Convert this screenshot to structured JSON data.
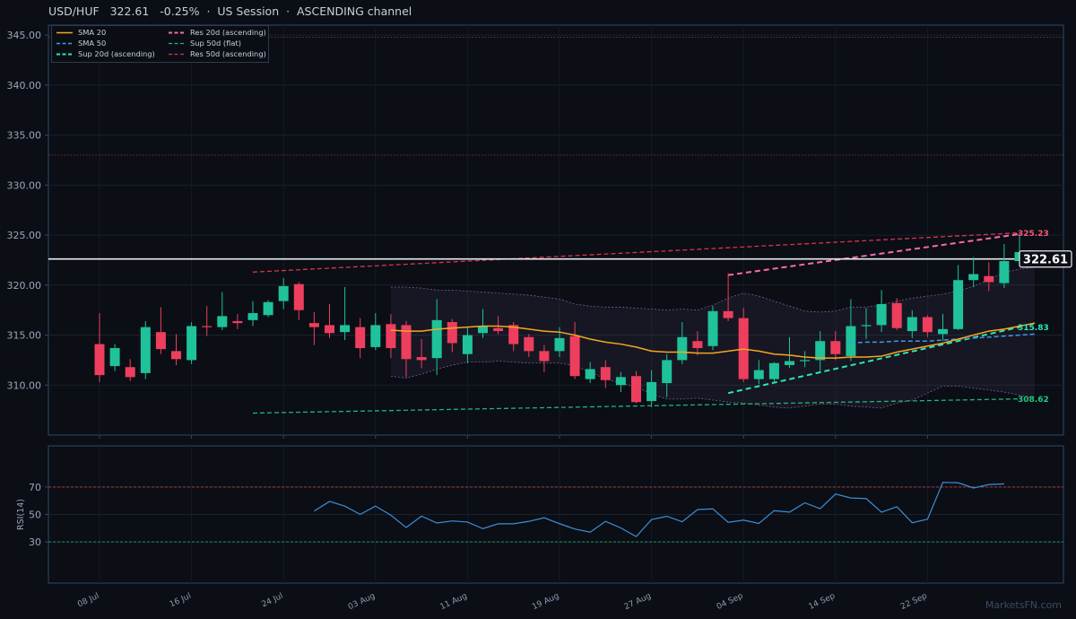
{
  "header": {
    "symbol": "USD/HUF",
    "price": "322.61",
    "change": "-0.25%",
    "session": "US Session",
    "pattern": "ASCENDING channel"
  },
  "legend": [
    {
      "label": "SMA 20",
      "color": "#f5a623",
      "dash": "solid",
      "width": 1.6
    },
    {
      "label": "SMA 50",
      "color": "#3b9be8",
      "dash": "dashed",
      "width": 1.6
    },
    {
      "label": "Sup 20d (ascending)",
      "color": "#2ee6b0",
      "dash": "dashed",
      "width": 2
    },
    {
      "label": "Res 20d (ascending)",
      "color": "#ff6aa8",
      "dash": "dashed",
      "width": 2
    },
    {
      "label": "Sup 50d (flat)",
      "color": "#22b37a",
      "dash": "dashed",
      "width": 1.3
    },
    {
      "label": "Res 50d (ascending)",
      "color": "#d9334f",
      "dash": "dashed",
      "width": 1.3
    }
  ],
  "watermark": "MarketsFN.com",
  "colors": {
    "up": "#1fc29b",
    "down": "#ee3e5e",
    "background": "#0b0e15",
    "grid": "#1a212d",
    "axis": "#2e4a66",
    "sma20": "#f5a623",
    "sma50": "#3b9be8",
    "rsi": "#3b8fd8"
  },
  "chart_data": {
    "type": "candlestick",
    "symbol": "USD/HUF",
    "ylim": [
      305,
      346
    ],
    "yticks": [
      310,
      315,
      320,
      325,
      330,
      335,
      340,
      345
    ],
    "ytick_labels": [
      "310.00",
      "315.00",
      "320.00",
      "325.00",
      "330.00",
      "335.00",
      "340.00",
      "345.00"
    ],
    "x_tick_labels": [
      {
        "label": "08 Jul",
        "index": 0
      },
      {
        "label": "16 Jul",
        "index": 6
      },
      {
        "label": "24 Jul",
        "index": 12
      },
      {
        "label": "03 Aug",
        "index": 18
      },
      {
        "label": "11 Aug",
        "index": 24
      },
      {
        "label": "19 Aug",
        "index": 30
      },
      {
        "label": "27 Aug",
        "index": 36
      },
      {
        "label": "04 Sep",
        "index": 42
      },
      {
        "label": "14 Sep",
        "index": 48
      },
      {
        "label": "22 Sep",
        "index": 54
      }
    ],
    "ohlc": [
      [
        314.1,
        317.2,
        310.3,
        311.0
      ],
      [
        311.9,
        314.1,
        311.4,
        313.7
      ],
      [
        311.8,
        312.6,
        310.4,
        310.8
      ],
      [
        311.2,
        316.4,
        310.6,
        315.8
      ],
      [
        315.3,
        317.8,
        313.1,
        313.6
      ],
      [
        313.4,
        315.1,
        312.0,
        312.6
      ],
      [
        312.5,
        316.3,
        312.1,
        315.9
      ],
      [
        315.9,
        317.9,
        314.9,
        315.8
      ],
      [
        315.8,
        319.3,
        315.5,
        316.9
      ],
      [
        316.4,
        317.1,
        315.6,
        316.2
      ],
      [
        316.5,
        318.4,
        315.9,
        317.2
      ],
      [
        317.0,
        318.5,
        316.8,
        318.3
      ],
      [
        318.4,
        320.7,
        317.6,
        319.9
      ],
      [
        320.1,
        320.3,
        316.5,
        317.5
      ],
      [
        316.2,
        317.3,
        314.0,
        315.8
      ],
      [
        316.0,
        318.1,
        314.7,
        315.2
      ],
      [
        315.3,
        319.8,
        314.5,
        316.0
      ],
      [
        315.8,
        316.7,
        312.7,
        313.7
      ],
      [
        313.8,
        317.2,
        313.5,
        316.0
      ],
      [
        316.1,
        317.1,
        312.7,
        313.7
      ],
      [
        316.0,
        316.4,
        310.8,
        312.6
      ],
      [
        312.8,
        314.6,
        311.7,
        312.5
      ],
      [
        312.7,
        318.6,
        311.0,
        316.5
      ],
      [
        316.3,
        316.6,
        313.3,
        314.2
      ],
      [
        313.1,
        315.8,
        312.2,
        315.0
      ],
      [
        315.2,
        317.6,
        314.7,
        315.9
      ],
      [
        315.7,
        316.9,
        315.1,
        315.4
      ],
      [
        316.0,
        316.3,
        313.4,
        314.1
      ],
      [
        314.8,
        315.1,
        312.8,
        313.4
      ],
      [
        313.4,
        314.0,
        311.3,
        312.4
      ],
      [
        313.4,
        315.8,
        312.8,
        314.7
      ],
      [
        314.9,
        316.3,
        310.6,
        310.9
      ],
      [
        310.6,
        312.3,
        310.2,
        311.6
      ],
      [
        311.8,
        312.5,
        309.7,
        310.5
      ],
      [
        310.0,
        311.3,
        309.3,
        310.8
      ],
      [
        310.9,
        311.4,
        308.2,
        308.3
      ],
      [
        308.4,
        311.5,
        307.8,
        310.3
      ],
      [
        310.2,
        313.1,
        308.8,
        312.5
      ],
      [
        312.5,
        316.3,
        312.1,
        314.8
      ],
      [
        314.4,
        315.4,
        313.0,
        313.7
      ],
      [
        313.9,
        317.9,
        313.5,
        317.4
      ],
      [
        317.4,
        321.2,
        316.4,
        316.7
      ],
      [
        316.7,
        317.7,
        310.3,
        310.6
      ],
      [
        310.6,
        312.5,
        310.1,
        311.5
      ],
      [
        310.6,
        312.3,
        310.2,
        312.2
      ],
      [
        312.0,
        314.8,
        311.7,
        312.4
      ],
      [
        312.4,
        313.4,
        311.8,
        312.5
      ],
      [
        312.5,
        315.4,
        311.3,
        314.4
      ],
      [
        314.4,
        315.4,
        312.5,
        313.1
      ],
      [
        312.9,
        318.6,
        312.4,
        315.9
      ],
      [
        316.0,
        317.7,
        314.6,
        316.0
      ],
      [
        316.0,
        319.5,
        315.3,
        318.1
      ],
      [
        318.2,
        318.7,
        315.5,
        315.7
      ],
      [
        315.4,
        317.5,
        314.7,
        316.8
      ],
      [
        316.8,
        317.0,
        314.8,
        315.3
      ],
      [
        315.1,
        317.1,
        314.4,
        315.6
      ],
      [
        315.6,
        322.0,
        315.5,
        320.5
      ],
      [
        320.5,
        322.8,
        319.8,
        321.1
      ],
      [
        320.9,
        322.3,
        319.4,
        320.3
      ],
      [
        320.2,
        324.1,
        319.7,
        322.4
      ],
      [
        322.4,
        325.2,
        322.1,
        323.3
      ]
    ],
    "sma20": {
      "start": 19,
      "values": [
        315.5,
        315.4,
        315.4,
        315.6,
        315.7,
        315.8,
        315.9,
        315.9,
        315.8,
        315.6,
        315.4,
        315.3,
        315.0,
        314.6,
        314.3,
        314.1,
        313.8,
        313.4,
        313.3,
        313.3,
        313.2,
        313.2,
        313.4,
        313.6,
        313.4,
        313.1,
        313.0,
        312.8,
        312.7,
        312.7,
        312.8,
        312.8,
        312.9,
        313.3,
        313.6,
        313.9,
        314.2,
        314.6,
        315.0,
        315.4,
        315.6,
        315.9,
        316.2
      ]
    },
    "sma50": {
      "start": 49,
      "values": [
        314.2,
        314.3,
        314.3,
        314.4,
        314.4,
        314.4,
        314.5,
        314.6,
        314.7,
        314.8,
        314.9,
        315.0,
        315.1
      ]
    },
    "bollinger": {
      "start": 19,
      "upper": [
        319.8,
        319.8,
        319.7,
        319.5,
        319.5,
        319.4,
        319.3,
        319.2,
        319.1,
        319.0,
        318.8,
        318.6,
        318.1,
        317.9,
        317.8,
        317.8,
        317.7,
        317.6,
        317.5,
        317.6,
        317.5,
        318.0,
        318.7,
        319.2,
        318.9,
        318.4,
        317.9,
        317.4,
        317.3,
        317.4,
        317.8,
        317.8,
        318.0,
        318.4,
        318.7,
        318.9,
        319.1,
        319.4,
        319.9,
        320.5,
        321.3,
        321.6,
        321.8
      ],
      "lower": [
        310.9,
        310.7,
        311.1,
        311.6,
        312.0,
        312.3,
        312.3,
        312.4,
        312.3,
        312.2,
        312.2,
        312.2,
        311.9,
        311.3,
        310.6,
        310.2,
        309.8,
        309.1,
        308.6,
        308.6,
        308.7,
        308.5,
        308.3,
        308.2,
        308.0,
        307.8,
        307.7,
        307.9,
        308.1,
        308.1,
        307.9,
        307.8,
        307.7,
        308.2,
        308.5,
        309.2,
        309.9,
        309.9,
        309.7,
        309.5,
        309.3,
        309.0,
        308.7
      ]
    },
    "trendlines": [
      {
        "name": "Res 20d (ascending)",
        "x": [
          41,
          60
        ],
        "y": [
          321.0,
          325.1
        ],
        "color": "#ff6aa8",
        "width": 2
      },
      {
        "name": "Sup 20d (ascending)",
        "x": [
          41,
          60
        ],
        "y": [
          309.2,
          315.8
        ],
        "color": "#2ee6b0",
        "width": 2
      },
      {
        "name": "Res 50d (ascending)",
        "x": [
          10,
          60
        ],
        "y": [
          321.3,
          325.23
        ],
        "color": "#d9334f",
        "width": 1.3
      },
      {
        "name": "Sup 50d (flat)",
        "x": [
          10,
          60
        ],
        "y": [
          307.2,
          308.62
        ],
        "color": "#22b37a",
        "width": 1.3
      }
    ],
    "hlines": [
      {
        "y": 344.8,
        "color": "#9b3b33"
      },
      {
        "y": 333.0,
        "color": "#9b3b33"
      }
    ],
    "current_price": 322.61,
    "labels": [
      {
        "text": "325.23",
        "value": 325.23,
        "color": "#ff5577"
      },
      {
        "text": "315.83",
        "value": 315.83,
        "color": "#2ee6b0"
      },
      {
        "text": "308.62",
        "value": 308.62,
        "color": "#22c77f"
      }
    ],
    "price_tag": "322.61",
    "rsi": {
      "label": "RSI(14)",
      "ylim": [
        0,
        100
      ],
      "yticks": [
        30,
        50,
        70
      ],
      "overbought": 70,
      "oversold": 30,
      "start": 14,
      "values": [
        52.5,
        59.5,
        56.1,
        50.1,
        56.1,
        49.5,
        40.5,
        48.8,
        43.8,
        45.3,
        44.5,
        39.7,
        43.2,
        43.2,
        45.0,
        47.6,
        43.3,
        39.4,
        37.1,
        45.0,
        40.2,
        33.9,
        46.3,
        48.7,
        44.7,
        53.6,
        54.1,
        44.3,
        45.9,
        43.5,
        52.8,
        51.7,
        58.5,
        54.2,
        64.9,
        62.0,
        61.6,
        51.7,
        55.7,
        44.0,
        46.6,
        73.4,
        73.1,
        69.3,
        71.8,
        72.3
      ]
    }
  }
}
